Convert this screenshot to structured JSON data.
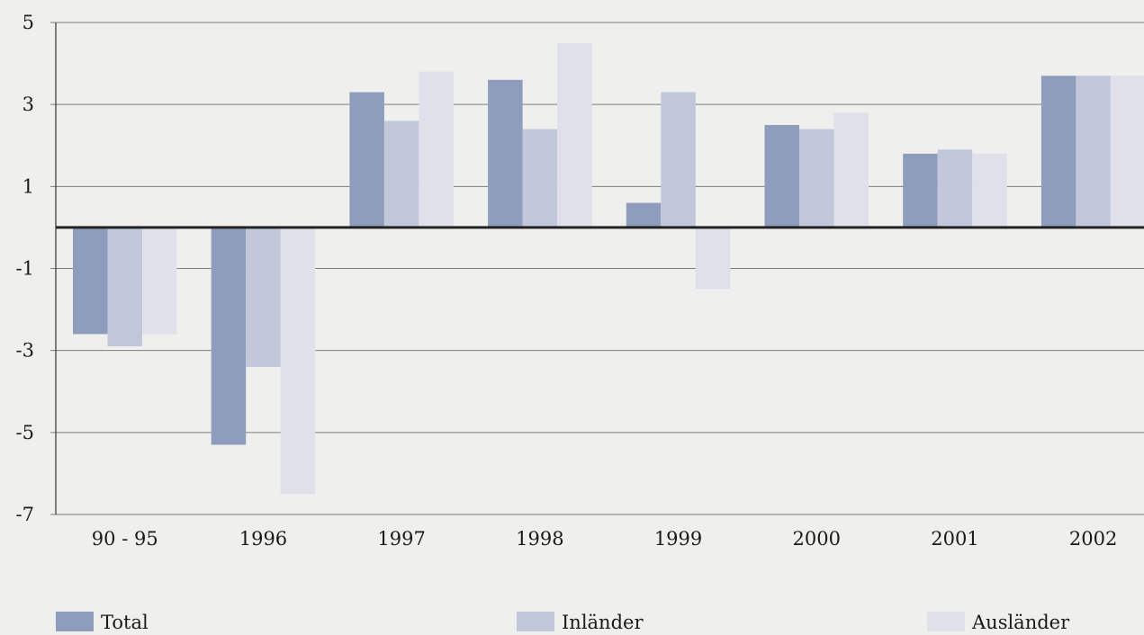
{
  "chart_data": {
    "type": "bar",
    "title": "",
    "xlabel": "",
    "ylabel": "",
    "ylim": [
      -7,
      5
    ],
    "y_ticks": [
      "5",
      "3",
      "1",
      "-1",
      "-3",
      "-5",
      "-7"
    ],
    "y_tick_values": [
      5,
      3,
      1,
      -1,
      -3,
      -5,
      -7
    ],
    "grid": true,
    "legend_position": "bottom",
    "categories": [
      "90 - 95",
      "1996",
      "1997",
      "1998",
      "1999",
      "2000",
      "2001",
      "2002"
    ],
    "series": [
      {
        "name": "Total",
        "color": "#8e9dbb",
        "values": [
          -2.6,
          -5.3,
          3.3,
          3.6,
          0.6,
          2.5,
          1.8,
          3.7
        ]
      },
      {
        "name": "Inländer",
        "color": "#c2c7d9",
        "values": [
          -2.9,
          -3.4,
          2.6,
          2.4,
          3.3,
          2.4,
          1.9,
          3.7
        ]
      },
      {
        "name": "Ausländer",
        "color": "#dfe0ea",
        "values": [
          -2.6,
          -6.5,
          3.8,
          4.5,
          -1.5,
          2.8,
          1.8,
          3.7
        ]
      }
    ]
  }
}
